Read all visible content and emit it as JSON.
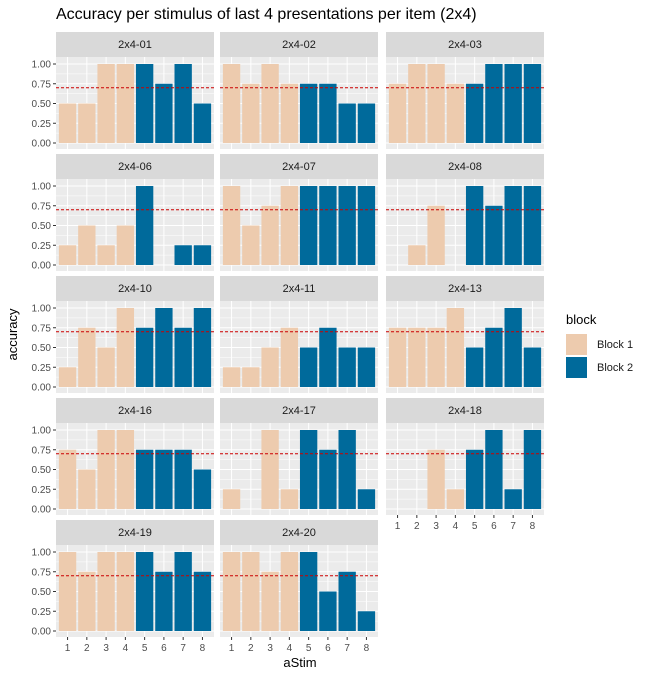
{
  "chart_data": {
    "type": "bar",
    "title": "Accuracy per stimulus of last 4 presentations per item (2x4)",
    "xlabel": "aStim",
    "ylabel": "accuracy",
    "categories": [
      "1",
      "2",
      "3",
      "4",
      "5",
      "6",
      "7",
      "8"
    ],
    "ylim": [
      0,
      1
    ],
    "y_ticks": [
      "0.00",
      "0.25",
      "0.50",
      "0.75",
      "1.00"
    ],
    "reference_line": {
      "y": 0.7,
      "style": "dashed",
      "color": "#cc0000"
    },
    "legend": {
      "title": "block",
      "placement": "right",
      "items": [
        {
          "label": "Block 1",
          "color": "#EDCBAE"
        },
        {
          "label": "Block 2",
          "color": "#006A9B"
        }
      ]
    },
    "block_of_category": [
      1,
      1,
      1,
      1,
      2,
      2,
      2,
      2
    ],
    "panels": [
      {
        "label": "2x4-01",
        "values": [
          0.5,
          0.5,
          1.0,
          1.0,
          1.0,
          0.75,
          1.0,
          0.5
        ]
      },
      {
        "label": "2x4-02",
        "values": [
          1.0,
          0.75,
          1.0,
          0.75,
          0.75,
          0.75,
          0.5,
          0.5
        ]
      },
      {
        "label": "2x4-03",
        "values": [
          0.75,
          1.0,
          1.0,
          0.75,
          0.75,
          1.0,
          1.0,
          1.0
        ]
      },
      {
        "label": "2x4-06",
        "values": [
          0.25,
          0.5,
          0.25,
          0.5,
          1.0,
          0.0,
          0.25,
          0.25
        ]
      },
      {
        "label": "2x4-07",
        "values": [
          1.0,
          0.5,
          0.75,
          1.0,
          1.0,
          1.0,
          1.0,
          1.0
        ]
      },
      {
        "label": "2x4-08",
        "values": [
          0.0,
          0.25,
          0.75,
          0.0,
          1.0,
          0.75,
          1.0,
          1.0
        ]
      },
      {
        "label": "2x4-10",
        "values": [
          0.25,
          0.75,
          0.5,
          1.0,
          0.75,
          1.0,
          0.75,
          1.0
        ]
      },
      {
        "label": "2x4-11",
        "values": [
          0.25,
          0.25,
          0.5,
          0.75,
          0.5,
          0.75,
          0.5,
          0.5
        ]
      },
      {
        "label": "2x4-13",
        "values": [
          0.75,
          0.75,
          0.75,
          1.0,
          0.5,
          0.75,
          1.0,
          0.5
        ]
      },
      {
        "label": "2x4-16",
        "values": [
          0.75,
          0.5,
          1.0,
          1.0,
          0.75,
          0.75,
          0.75,
          0.5
        ]
      },
      {
        "label": "2x4-17",
        "values": [
          0.25,
          0.0,
          1.0,
          0.25,
          1.0,
          0.75,
          1.0,
          0.25
        ]
      },
      {
        "label": "2x4-18",
        "values": [
          0.0,
          0.0,
          0.75,
          0.25,
          0.75,
          1.0,
          0.25,
          1.0
        ]
      },
      {
        "label": "2x4-19",
        "values": [
          1.0,
          0.75,
          1.0,
          1.0,
          1.0,
          0.75,
          1.0,
          0.75
        ]
      },
      {
        "label": "2x4-20",
        "values": [
          1.0,
          1.0,
          0.75,
          1.0,
          1.0,
          0.5,
          0.75,
          0.25
        ]
      }
    ],
    "facet_columns": 3,
    "grid": true
  }
}
